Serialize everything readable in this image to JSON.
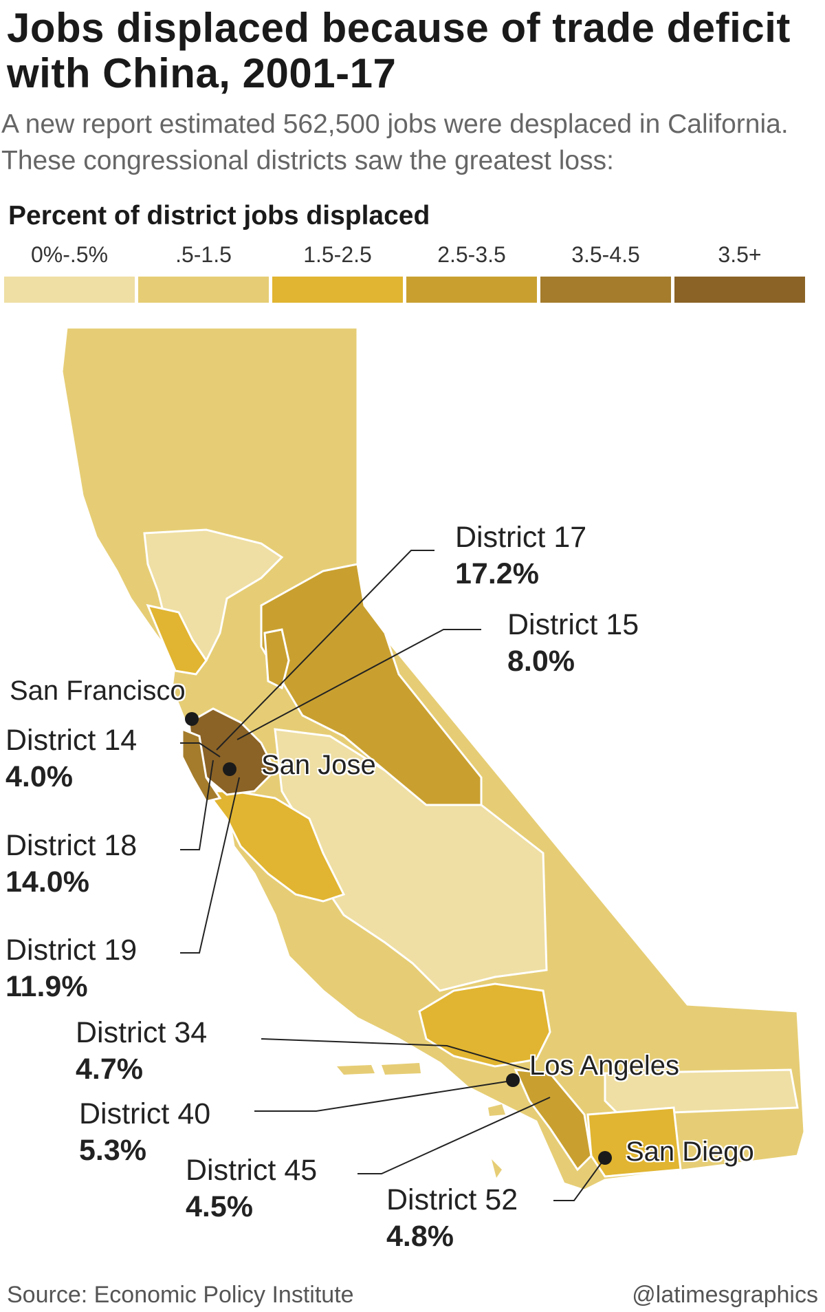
{
  "title": "Jobs displaced because of trade deficit with China, 2001-17",
  "subtitle": "A new report estimated 562,500 jobs were desplaced in California. These congressional districts saw the greatest loss:",
  "legend": {
    "title": "Percent of district jobs displaced",
    "items": [
      {
        "label": "0%-.5%",
        "color": "#efdfa4"
      },
      {
        "label": ".5-1.5",
        "color": "#e6cd75"
      },
      {
        "label": "1.5-2.5",
        "color": "#e1b531"
      },
      {
        "label": "2.5-3.5",
        "color": "#c9a030"
      },
      {
        "label": "3.5-4.5",
        "color": "#a47c2c"
      },
      {
        "label": "3.5+",
        "color": "#8b6326"
      }
    ]
  },
  "districts": [
    {
      "name": "District 17",
      "value": "17.2%"
    },
    {
      "name": "District 15",
      "value": "8.0%"
    },
    {
      "name": "District 14",
      "value": "4.0%"
    },
    {
      "name": "District 18",
      "value": "14.0%"
    },
    {
      "name": "District 19",
      "value": "11.9%"
    },
    {
      "name": "District 34",
      "value": "4.7%"
    },
    {
      "name": "District 40",
      "value": "5.3%"
    },
    {
      "name": "District 45",
      "value": "4.5%"
    },
    {
      "name": "District 52",
      "value": "4.8%"
    }
  ],
  "cities": {
    "san_francisco": "San Francisco",
    "san_jose": "San Jose",
    "los_angeles": "Los Angeles",
    "san_diego": "San Diego"
  },
  "footer": {
    "source": "Source: Economic Policy Institute",
    "credit": "@latimesgraphics"
  }
}
